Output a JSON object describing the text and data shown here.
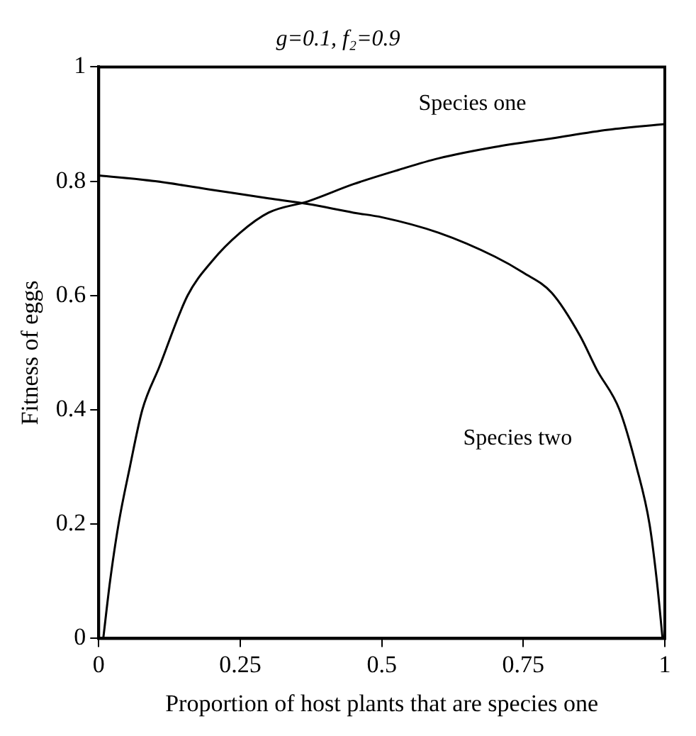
{
  "chart_data": {
    "type": "line",
    "title": "g=0.1, f₂=0.9",
    "xlabel": "Proportion of host plants that are species one",
    "ylabel": "Fitness of eggs",
    "xlim": [
      0,
      1
    ],
    "xticks": [
      0,
      0.25,
      0.5,
      0.75,
      1
    ],
    "ylim": [
      0,
      1
    ],
    "yticks": [
      0,
      0.2,
      0.4,
      0.6,
      0.8,
      1
    ],
    "grid": false,
    "legend": false,
    "marker": "none",
    "line_style": "solid",
    "series": [
      {
        "name": "Species one",
        "color": "#000000",
        "x": [
          0.008,
          0.02,
          0.035,
          0.055,
          0.077,
          0.107,
          0.157,
          0.2,
          0.25,
          0.3,
          0.37,
          0.45,
          0.53,
          0.6,
          0.7,
          0.8,
          0.9,
          1
        ],
        "values": [
          0,
          0.1,
          0.2,
          0.3,
          0.4,
          0.475,
          0.6,
          0.66,
          0.71,
          0.745,
          0.765,
          0.795,
          0.82,
          0.84,
          0.86,
          0.875,
          0.89,
          0.9
        ]
      },
      {
        "name": "Species two",
        "color": "#000000",
        "x": [
          0,
          0.1,
          0.2,
          0.3,
          0.37,
          0.45,
          0.5,
          0.6,
          0.7,
          0.75,
          0.8,
          0.85,
          0.88,
          0.92,
          0.95,
          0.973,
          0.986,
          0.996
        ],
        "values": [
          0.81,
          0.8,
          0.785,
          0.77,
          0.76,
          0.745,
          0.737,
          0.71,
          0.668,
          0.64,
          0.605,
          0.53,
          0.47,
          0.4,
          0.3,
          0.2,
          0.1,
          0
        ]
      }
    ]
  }
}
